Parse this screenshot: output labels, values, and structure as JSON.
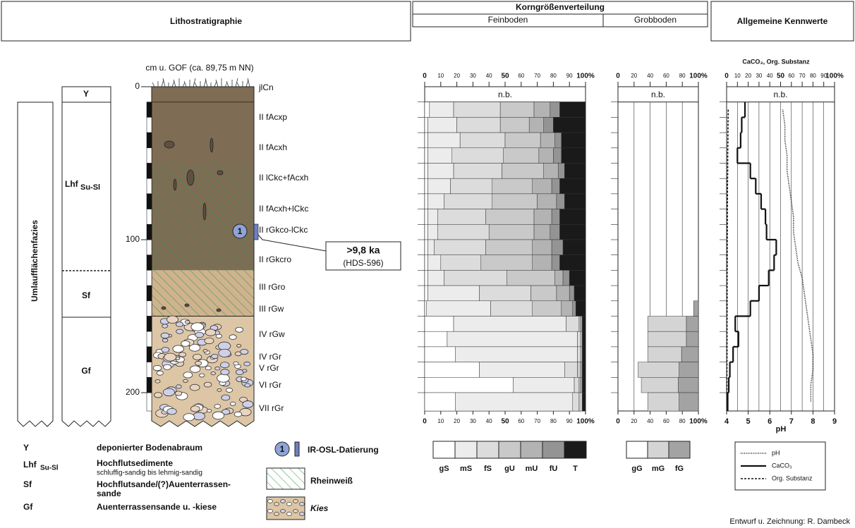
{
  "header": {
    "lithostratigraphie": "Lithostratigraphie",
    "korngroessen": "Korngrößenverteilung",
    "feinboden": "Feinboden",
    "grobboden": "Grobboden",
    "kennwerte": "Allgemeine Kennwerte"
  },
  "profile": {
    "depth_label": "cm u. GOF (ca. 89,75 m NN)",
    "depth_range": [
      0,
      212
    ],
    "depth_ticks": [
      0,
      100,
      200
    ],
    "facies": "Umlaufflächenfazies",
    "y_header": "Y",
    "units": [
      {
        "name": "Lhf",
        "sub": "Su-Sl"
      },
      {
        "name": "Sf"
      },
      {
        "name": "Gf"
      }
    ],
    "horizons": [
      "jlCn",
      "II fAcxp",
      "II fAcxh",
      "II lCkc+fAcxh",
      "II fAcxh+lCkc",
      "II rGkco-lCkc",
      "II rGkcro",
      "III rGro",
      "III rGw",
      "IV rGw",
      "IV rGr",
      "V rGr",
      "VI rGr",
      "VII rGr"
    ],
    "osl": {
      "number": "1",
      "age": ">9,8 ka",
      "lab": "(HDS-596)"
    }
  },
  "depth_rows": [
    [
      10,
      20
    ],
    [
      20,
      30
    ],
    [
      30,
      40
    ],
    [
      40,
      50
    ],
    [
      50,
      60
    ],
    [
      60,
      70
    ],
    [
      70,
      80
    ],
    [
      80,
      90
    ],
    [
      90,
      100
    ],
    [
      100,
      110
    ],
    [
      110,
      120
    ],
    [
      120,
      130
    ],
    [
      130,
      140
    ],
    [
      140,
      150
    ],
    [
      150,
      160
    ],
    [
      160,
      170
    ],
    [
      170,
      180
    ],
    [
      180,
      190
    ],
    [
      190,
      200
    ],
    [
      200,
      212
    ]
  ],
  "fine": {
    "na": "n.b.",
    "xlim": [
      0,
      100
    ],
    "xticks": [
      0,
      10,
      20,
      30,
      40,
      50,
      60,
      70,
      80,
      90,
      {
        "value": 100,
        "label": "100%"
      }
    ],
    "classes": [
      "gS",
      "mS",
      "fS",
      "gU",
      "mU",
      "fU",
      "T"
    ],
    "colors": [
      "#ffffff",
      "#ececec",
      "#dcdcdc",
      "#c9c9c9",
      "#b3b3b3",
      "#949494",
      "#1a1a1a"
    ],
    "values": [
      [
        3,
        15,
        29,
        21,
        10,
        6,
        16
      ],
      [
        2,
        18,
        27,
        18,
        9,
        6,
        20
      ],
      [
        2,
        20,
        28,
        22,
        9,
        4,
        15
      ],
      [
        2,
        15,
        32,
        22,
        9,
        5,
        15
      ],
      [
        2,
        16,
        30,
        26,
        9,
        4,
        13
      ],
      [
        2,
        14,
        26,
        25,
        12,
        5,
        16
      ],
      [
        2,
        10,
        30,
        28,
        12,
        5,
        13
      ],
      [
        2,
        6,
        30,
        30,
        11,
        5,
        16
      ],
      [
        2,
        6,
        32,
        28,
        10,
        6,
        16
      ],
      [
        2,
        4,
        32,
        29,
        12,
        7,
        14
      ],
      [
        2,
        8,
        25,
        32,
        12,
        5,
        16
      ],
      [
        2,
        10,
        39,
        30,
        5,
        4,
        10
      ],
      [
        2,
        32,
        32,
        16,
        8,
        3,
        7
      ],
      [
        1,
        40,
        26,
        18,
        7,
        2,
        6
      ],
      [
        18,
        70,
        8,
        1,
        1,
        0,
        2
      ],
      [
        14,
        81,
        2,
        1,
        0,
        0,
        2
      ],
      [
        19,
        76,
        2,
        1,
        0,
        0,
        2
      ],
      [
        34,
        53,
        8,
        2,
        1,
        0,
        2
      ],
      [
        55,
        38,
        3,
        1,
        1,
        0,
        2
      ],
      [
        19,
        73,
        4,
        2,
        0,
        0,
        2
      ]
    ]
  },
  "coarse": {
    "na": "n.b.",
    "xlim": [
      0,
      100
    ],
    "xticks": [
      0,
      20,
      40,
      60,
      80,
      {
        "value": 100,
        "label": "100%"
      }
    ],
    "classes": [
      "gG",
      "mG",
      "fG"
    ],
    "colors": [
      "#ffffff",
      "#d4d4d4",
      "#a3a3a3"
    ],
    "values": [
      null,
      null,
      null,
      null,
      null,
      null,
      null,
      null,
      null,
      null,
      null,
      null,
      null,
      [
        0,
        0,
        6
      ],
      [
        0,
        48,
        15
      ],
      [
        0,
        48,
        15
      ],
      [
        0,
        42,
        21
      ],
      [
        0,
        51,
        24
      ],
      [
        0,
        46,
        25
      ],
      [
        0,
        39,
        24
      ]
    ]
  },
  "kennwerte": {
    "na": "n.b.",
    "title": "CaCO₃, Org. Substanz",
    "xlim": [
      0,
      100
    ],
    "xticks": [
      0,
      10,
      20,
      30,
      40,
      50,
      60,
      70,
      80,
      90,
      {
        "value": 100,
        "label": "100%"
      }
    ],
    "ph_lim": [
      4,
      9
    ],
    "ph_ticks": [
      4,
      5,
      6,
      7,
      8,
      9
    ],
    "ph_label": "pH",
    "caco3": [
      17,
      14,
      13,
      10,
      22,
      27,
      32,
      36,
      37,
      46,
      44,
      39,
      30,
      22,
      8,
      11,
      6,
      3,
      2,
      1
    ],
    "ph": [
      6.6,
      6.7,
      6.7,
      6.8,
      6.8,
      6.9,
      7.0,
      7.1,
      7.1,
      7.2,
      7.3,
      7.5,
      7.6,
      7.7,
      7.8,
      7.9,
      8.0,
      8.0,
      7.9,
      7.9
    ],
    "org": [
      1.5,
      1.3,
      1.2,
      1.0,
      1.0,
      0.8,
      0.8,
      0.7,
      0.7,
      0.6,
      0.6,
      0.5,
      0.5,
      0.5,
      0.4,
      0.4,
      0.4,
      0.3,
      0.3,
      0.3
    ],
    "legend": [
      "pH",
      "CaCO₃",
      "Org. Substanz"
    ]
  },
  "legend": {
    "units": [
      {
        "code": "Y",
        "text": "deponierter Bodenabraum"
      },
      {
        "code": "Lhf",
        "sub": "Su-Sl",
        "text": "Hochflutsedimente",
        "note": "schluffig-sandig bis lehmig-sandig"
      },
      {
        "code": "Sf",
        "text": "Hochflutsande/(?)Auenterrassen-",
        "text2": "sande"
      },
      {
        "code": "Gf",
        "text": "Auenterrassensande u. -kiese"
      }
    ],
    "osl": "IR-OSL-Datierung",
    "rheinweiss": "Rheinweiß",
    "kies": "Kies"
  },
  "credit": "Entwurf u. Zeichnung: R. Dambeck"
}
